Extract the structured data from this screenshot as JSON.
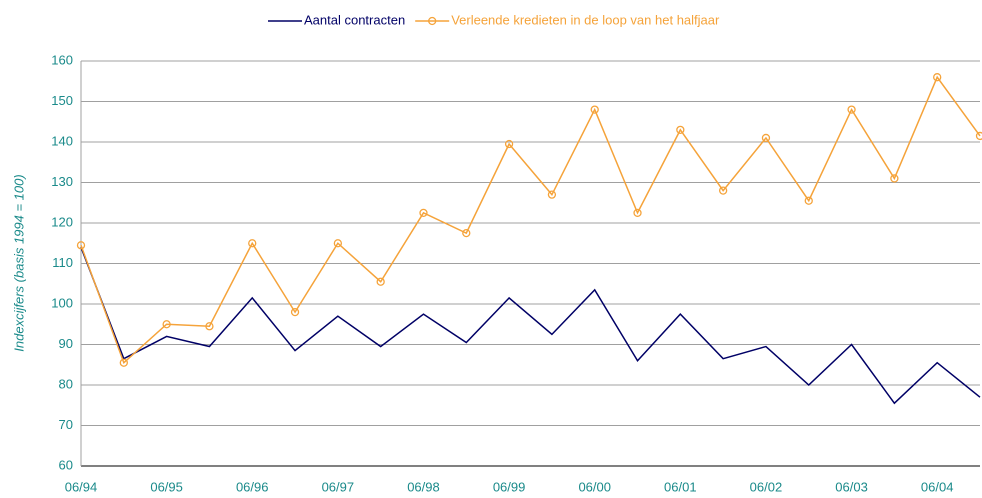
{
  "chart_data": {
    "type": "line",
    "y_label": "Indexcijfers (basis 1994 = 100)",
    "categories": [
      "06/94",
      null,
      "06/95",
      null,
      "06/96",
      null,
      "06/97",
      null,
      "06/98",
      null,
      "06/99",
      null,
      "06/00",
      null,
      "06/01",
      null,
      "06/02",
      null,
      "06/03",
      null,
      "06/04",
      null
    ],
    "series": [
      {
        "name": "Aantal contracten",
        "color": "#000066",
        "marker": false,
        "values": [
          114,
          86.5,
          92,
          89.5,
          101.5,
          88.5,
          97,
          89.5,
          97.5,
          90.5,
          101.5,
          92.5,
          103.5,
          86,
          97.5,
          86.5,
          89.5,
          80,
          90,
          75.5,
          85.5,
          77
        ]
      },
      {
        "name": "Verleende kredieten in de loop van het halfjaar",
        "color": "#f5a33a",
        "marker": true,
        "values": [
          114.5,
          85.5,
          95,
          94.5,
          115,
          98,
          115,
          105.5,
          122.5,
          117.5,
          139.5,
          127,
          148,
          122.5,
          143,
          128,
          141,
          125.5,
          148,
          131,
          156,
          141.5
        ]
      }
    ],
    "ylim": [
      60,
      160
    ],
    "yticks": [
      60,
      70,
      80,
      90,
      100,
      110,
      120,
      130,
      140,
      150,
      160
    ],
    "grid": true,
    "legend": "top"
  }
}
